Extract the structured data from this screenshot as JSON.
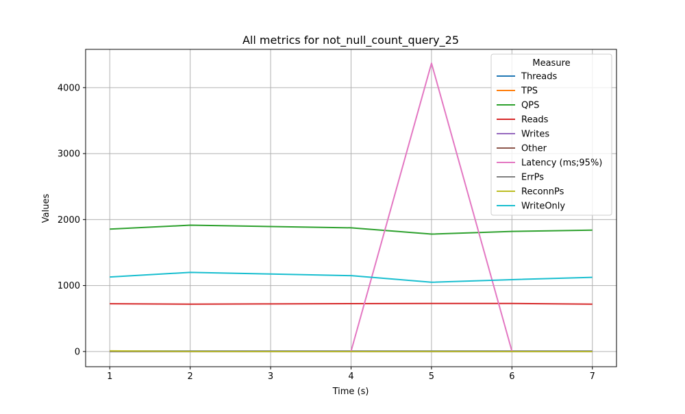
{
  "chart_data": {
    "type": "line",
    "title": "All metrics for not_null_count_query_25",
    "xlabel": "Time (s)",
    "ylabel": "Values",
    "xlim": [
      0.7,
      7.3
    ],
    "ylim": [
      -230,
      4580
    ],
    "xticks": [
      1,
      2,
      3,
      4,
      5,
      6,
      7
    ],
    "yticks": [
      0,
      1000,
      2000,
      3000,
      4000
    ],
    "grid": true,
    "legend": {
      "title": "Measure",
      "placement": "top-right"
    },
    "x": [
      1,
      2,
      3,
      4,
      5,
      6,
      7
    ],
    "series": [
      {
        "name": "Threads",
        "color": "#1f77b4",
        "values": [
          8,
          8,
          8,
          8,
          8,
          8,
          8
        ]
      },
      {
        "name": "TPS",
        "color": "#ff7f0e",
        "values": [
          2,
          2,
          2,
          2,
          2,
          2,
          2
        ]
      },
      {
        "name": "QPS",
        "color": "#2ca02c",
        "values": [
          1855,
          1915,
          1895,
          1875,
          1780,
          1820,
          1840
        ]
      },
      {
        "name": "Reads",
        "color": "#d62728",
        "values": [
          725,
          718,
          722,
          726,
          728,
          728,
          718
        ]
      },
      {
        "name": "Writes",
        "color": "#9467bd",
        "values": [
          5,
          5,
          5,
          5,
          5,
          5,
          5
        ]
      },
      {
        "name": "Other",
        "color": "#8c564b",
        "values": [
          0,
          0,
          0,
          0,
          0,
          0,
          0
        ]
      },
      {
        "name": "Latency (ms;95%)",
        "color": "#e377c2",
        "values": [
          null,
          null,
          null,
          5,
          4370,
          5,
          null
        ]
      },
      {
        "name": "ErrPs",
        "color": "#7f7f7f",
        "values": [
          0,
          0,
          0,
          0,
          0,
          0,
          0
        ]
      },
      {
        "name": "ReconnPs",
        "color": "#bcbd22",
        "values": [
          10,
          2,
          1,
          1,
          3,
          1,
          1
        ]
      },
      {
        "name": "WriteOnly",
        "color": "#17becf",
        "values": [
          1130,
          1200,
          1175,
          1150,
          1050,
          1090,
          1125
        ]
      }
    ]
  }
}
